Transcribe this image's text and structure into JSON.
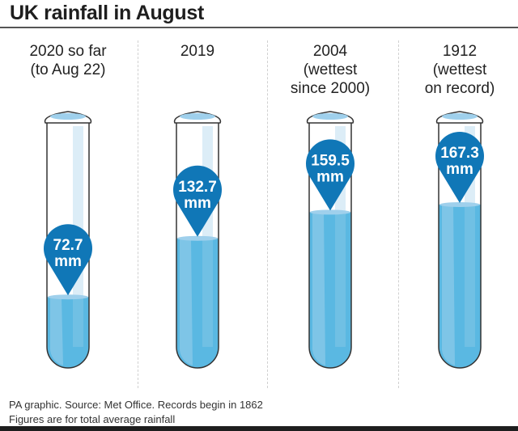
{
  "title": "UK rainfall in August",
  "footer": {
    "line1": "PA graphic. Source: Met Office. Records begin in 1862",
    "line2": "Figures are for total average rainfall"
  },
  "colors": {
    "pin": "#1077b7",
    "water": "#5ab8e2",
    "water_light": "#8dcbea",
    "tube_highlight": "#dcedf7",
    "rim_water": "#9fd0ec",
    "outline": "#333333"
  },
  "chart_data": {
    "type": "bar",
    "title": "UK rainfall in August",
    "unit": "mm",
    "ylim": [
      0,
      200
    ],
    "categories": [
      "2020 so far (to Aug 22)",
      "2019",
      "2004 (wettest since 2000)",
      "1912 (wettest on record)"
    ],
    "category_lines": [
      [
        "2020 so far",
        "(to Aug 22)"
      ],
      [
        "2019"
      ],
      [
        "2004",
        "(wettest",
        "since 2000)"
      ],
      [
        "1912",
        "(wettest",
        "on record)"
      ]
    ],
    "values": [
      72.7,
      132.7,
      159.5,
      167.3
    ],
    "labels": [
      "72.7",
      "132.7",
      "159.5",
      "167.3"
    ],
    "label_unit": "mm"
  }
}
